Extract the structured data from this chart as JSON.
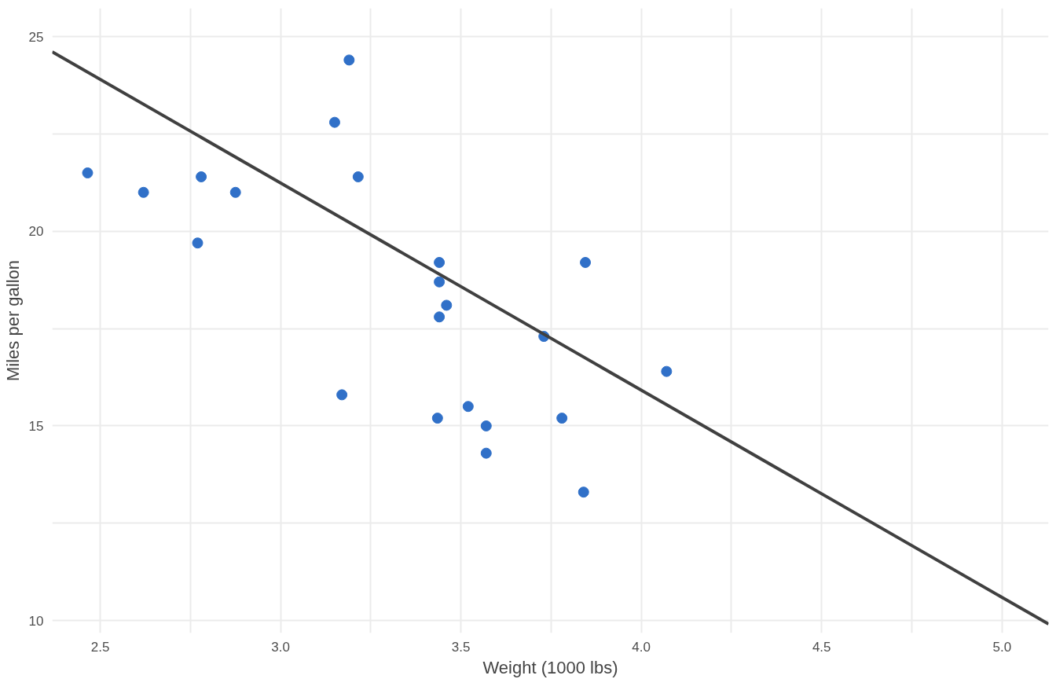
{
  "chart_data": {
    "type": "scatter",
    "xlabel": "Weight (1000 lbs)",
    "ylabel": "Miles per gallon",
    "xlim": [
      2.367,
      5.129
    ],
    "ylim": [
      9.68,
      25.73
    ],
    "xticks": [
      2.5,
      {
        "value": 2.75,
        "label": null
      },
      {
        "value": 3,
        "label": "3.0"
      },
      {
        "value": 3.25,
        "label": null
      },
      3.5,
      {
        "value": 3.75,
        "label": null
      },
      {
        "value": 4,
        "label": "4.0"
      },
      {
        "value": 4.25,
        "label": null
      },
      4.5,
      {
        "value": 4.75,
        "label": null
      },
      {
        "value": 5,
        "label": "5.0"
      }
    ],
    "yticks": [
      10,
      {
        "value": 12.5,
        "label": null
      },
      15,
      {
        "value": 17.5,
        "label": null
      },
      20,
      {
        "value": 22.5,
        "label": null
      },
      25
    ],
    "grid": true,
    "series": [
      {
        "marker": "circle",
        "color": "#3070c8",
        "x": [
          2.465,
          2.62,
          2.78,
          2.875,
          2.77,
          3.19,
          3.15,
          3.215,
          3.17,
          3.44,
          3.44,
          3.46,
          3.44,
          3.435,
          3.52,
          3.57,
          3.57,
          3.845,
          3.73,
          3.78,
          3.84,
          4.07
        ],
        "values": [
          21.5,
          21.0,
          21.4,
          21.0,
          19.7,
          24.4,
          22.8,
          21.4,
          15.8,
          19.2,
          18.7,
          18.1,
          17.8,
          15.2,
          15.5,
          15.0,
          14.3,
          19.2,
          17.3,
          15.2,
          13.3,
          16.4
        ]
      },
      {
        "type": "line",
        "color": "#404040",
        "x": [
          2.367,
          5.129
        ],
        "values": [
          24.61,
          9.91
        ]
      }
    ]
  }
}
